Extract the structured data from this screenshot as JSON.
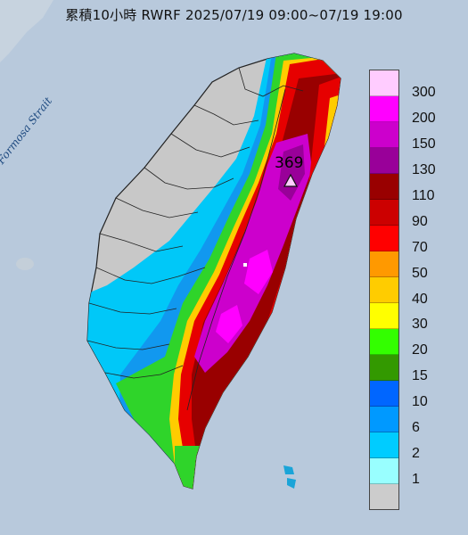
{
  "title": "累積10小時 RWRF 2025/07/19 09:00~07/19 19:00",
  "strait_label": "Formosa Strait",
  "max_station": {
    "value": "369",
    "marker": "triangle-marker"
  },
  "legend": {
    "colors": [
      "#ffccff",
      "#ff00ff",
      "#cc00cc",
      "#990099",
      "#990000",
      "#cc0000",
      "#ff0000",
      "#ff9900",
      "#ffcc00",
      "#ffff00",
      "#33ff00",
      "#339900",
      "#0066ff",
      "#0099ff",
      "#00ccff",
      "#99ffff",
      "#cccccc"
    ],
    "labels": [
      "300",
      "200",
      "150",
      "130",
      "110",
      "90",
      "70",
      "50",
      "40",
      "30",
      "20",
      "15",
      "10",
      "6",
      "2",
      "1"
    ]
  }
}
